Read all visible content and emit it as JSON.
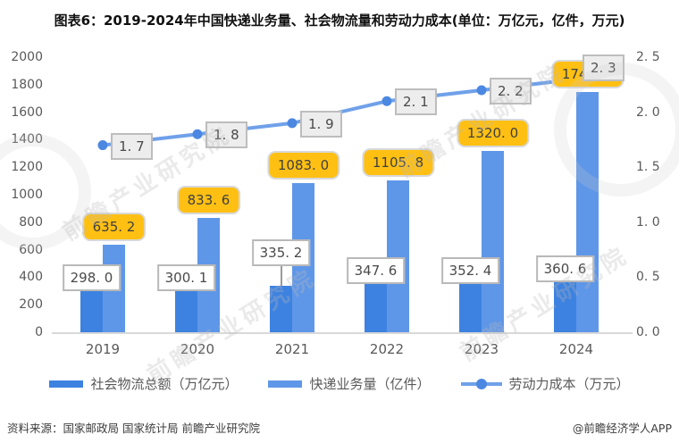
{
  "title": "图表6：2019-2024年中国快递业务量、社会物流量和劳动力成本(单位：万亿元，亿件，万元)",
  "watermark": {
    "text": "前瞻产业研究院"
  },
  "footer": {
    "source": "资料来源：国家邮政局 国家统计局 前瞻产业研究院",
    "credit": "@前瞻经济学人APP"
  },
  "colors": {
    "bar_social_logistics": "#3d82e0",
    "bar_express_volume": "#5f97e8",
    "line_labor_cost": "#70a1e9",
    "line_marker": "#4c88e2",
    "label_yellow_bg": "#ffc013",
    "label_gray_bg": "#ededed",
    "axis_text": "#595959",
    "baseline": "#d9d9d9"
  },
  "chart_data": {
    "type": "bar",
    "subtype": "grouped-bars-with-line",
    "categories": [
      "2019",
      "2020",
      "2021",
      "2022",
      "2023",
      "2024"
    ],
    "series": [
      {
        "name": "社会物流总额（万亿元）",
        "type": "bar",
        "axis": "left",
        "values": [
          298.0,
          300.1,
          335.2,
          347.6,
          352.4,
          360.6
        ]
      },
      {
        "name": "快递业务量（亿件）",
        "type": "bar",
        "axis": "left",
        "values": [
          635.2,
          833.6,
          1083.0,
          1105.8,
          1320.0,
          1745.0
        ]
      },
      {
        "name": "劳动力成本（万元）",
        "type": "line",
        "axis": "right",
        "values": [
          1.7,
          1.8,
          1.9,
          2.1,
          2.2,
          2.3
        ]
      }
    ],
    "left_axis": {
      "min": 0,
      "max": 2000,
      "step": 200
    },
    "right_axis": {
      "min": 0.0,
      "max": 2.5,
      "step": 0.5
    },
    "grid": false,
    "legend_position": "bottom"
  }
}
